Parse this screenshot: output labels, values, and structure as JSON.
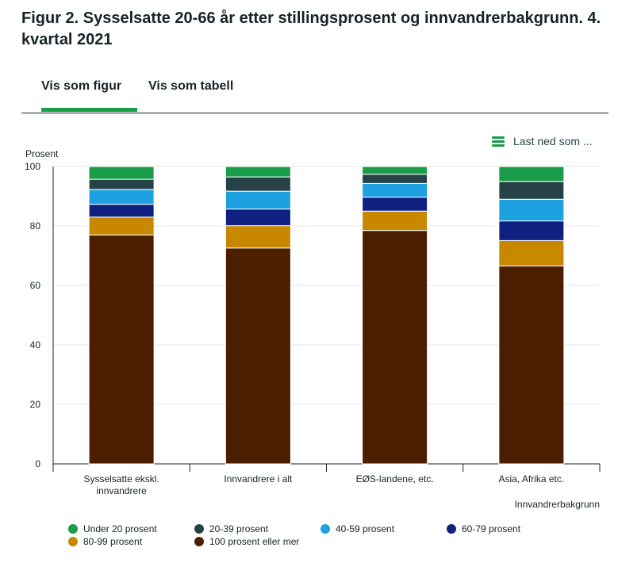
{
  "title": "Figur 2. Sysselsatte 20-66 år etter stillingsprosent og innvandrerbakgrunn. 4. kvartal 2021",
  "tabs": [
    {
      "label": "Vis som figur"
    },
    {
      "label": "Vis som tabell"
    }
  ],
  "download": {
    "label": "Last ned som ...",
    "icon": "menu-icon"
  },
  "chart_data": {
    "type": "bar",
    "stacked": true,
    "ylabel": "Prosent",
    "xlabel": "Innvandrerbakgrunn",
    "ylim": [
      0,
      100
    ],
    "yticks": [
      0,
      20,
      40,
      60,
      80,
      100
    ],
    "grid": true,
    "legend_position": "bottom",
    "categories": [
      [
        "Sysselsatte ekskl.",
        "innvandrere"
      ],
      [
        "Innvandrere i alt"
      ],
      [
        "EØS-landene, etc."
      ],
      [
        "Asia, Afrika etc."
      ]
    ],
    "series": [
      {
        "name": "100 prosent eller mer",
        "color": "#4b1e00",
        "values": [
          77.0,
          72.6,
          78.5,
          66.6
        ]
      },
      {
        "name": "80-99 prosent",
        "color": "#c78800",
        "values": [
          6.0,
          7.5,
          6.5,
          8.5
        ]
      },
      {
        "name": "60-79 prosent",
        "color": "#0f2080",
        "values": [
          4.3,
          5.6,
          4.7,
          6.6
        ]
      },
      {
        "name": "40-59 prosent",
        "color": "#1da1e0",
        "values": [
          5.0,
          6.0,
          4.6,
          7.3
        ]
      },
      {
        "name": "20-39 prosent",
        "color": "#274247",
        "values": [
          3.4,
          4.8,
          3.1,
          6.0
        ]
      },
      {
        "name": "Under 20 prosent",
        "color": "#1a9d49",
        "values": [
          4.3,
          3.5,
          2.6,
          5.0
        ]
      }
    ],
    "legend_order": [
      "Under 20 prosent",
      "20-39 prosent",
      "40-59 prosent",
      "60-79 prosent",
      "80-99 prosent",
      "100 prosent eller mer"
    ]
  }
}
